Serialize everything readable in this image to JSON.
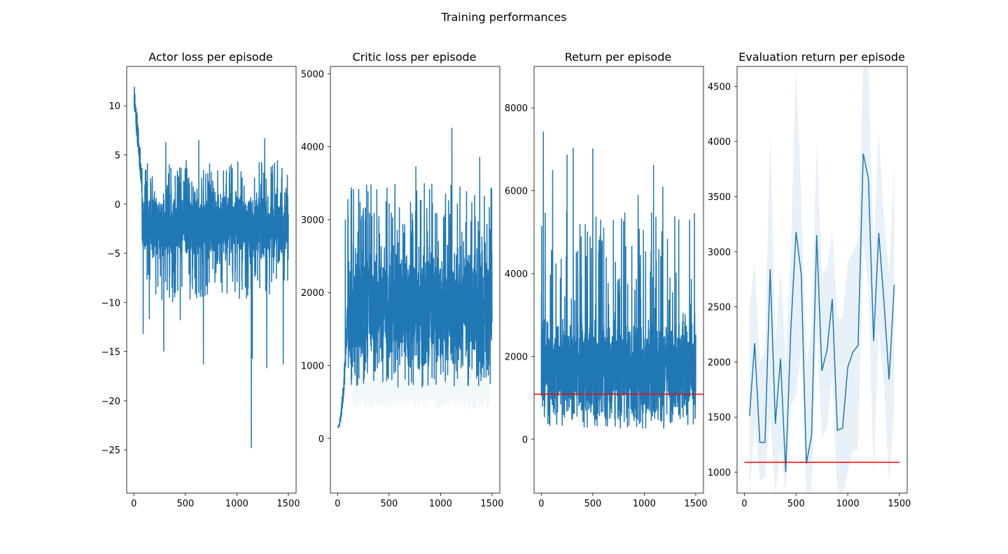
{
  "figure": {
    "title": "Training performances"
  },
  "chart_data": [
    {
      "type": "line",
      "title": "Actor loss per episode",
      "xlabel": "",
      "ylabel": "",
      "xlim": [
        -70,
        1575
      ],
      "ylim": [
        -29.4,
        14.0
      ],
      "xticks": [
        0,
        500,
        1000,
        1500
      ],
      "yticks": [
        10,
        5,
        0,
        -5,
        -10,
        -15,
        -20,
        -25
      ],
      "grid": false,
      "series": [
        {
          "color": "#1f77b4",
          "x_range": [
            0,
            1500
          ],
          "points_per_episode": 1,
          "summary": {
            "start": 11.5,
            "early_decay_to": 2.0,
            "decay_end_episode": 80,
            "typical_band": [
              -5,
              1.5
            ],
            "mean_after_decay": -2.2,
            "min": -24.8,
            "min_at": 1140,
            "max_after_decay": 6.7,
            "max_after_decay_at": 1270
          },
          "notable_spikes": [
            {
              "x": 90,
              "y": -13.2
            },
            {
              "x": 150,
              "y": -11.7
            },
            {
              "x": 290,
              "y": -15.0
            },
            {
              "x": 450,
              "y": -11.8
            },
            {
              "x": 675,
              "y": -16.3
            },
            {
              "x": 1150,
              "y": -15.7
            },
            {
              "x": 1290,
              "y": -16.7
            },
            {
              "x": 1450,
              "y": -16.3
            },
            {
              "x": 310,
              "y": 6.3
            },
            {
              "x": 630,
              "y": 6.5
            },
            {
              "x": 1270,
              "y": 6.7
            }
          ]
        }
      ]
    },
    {
      "type": "line",
      "title": "Critic loss per episode",
      "xlabel": "",
      "ylabel": "",
      "xlim": [
        -70,
        1575
      ],
      "ylim": [
        -750,
        5100
      ],
      "xticks": [
        0,
        500,
        1000,
        1500
      ],
      "yticks": [
        5000,
        4000,
        3000,
        2000,
        1000,
        0
      ],
      "grid": false,
      "series": [
        {
          "color": "#1f77b4",
          "x_range": [
            0,
            1500
          ],
          "summary": {
            "start": 150,
            "ramp_end_episode": 100,
            "typical_band": [
              1100,
              2600
            ],
            "mean_after_ramp": 1800,
            "min_after_ramp": 650,
            "max": 4260,
            "max_at": 1110
          },
          "notable_spikes": [
            {
              "x": 75,
              "y": 3000
            },
            {
              "x": 100,
              "y": 3280
            },
            {
              "x": 480,
              "y": 3440
            },
            {
              "x": 760,
              "y": 3730
            },
            {
              "x": 1110,
              "y": 4260
            },
            {
              "x": 1380,
              "y": 3860
            },
            {
              "x": 1490,
              "y": 3440
            }
          ]
        },
        {
          "name": "",
          "color": "#1f77b4",
          "style": "faint band",
          "opacity": 0.1,
          "band": [
            400,
            1000
          ]
        }
      ]
    },
    {
      "type": "line",
      "title": "Return per episode",
      "xlabel": "",
      "ylabel": "",
      "xlim": [
        -70,
        1575
      ],
      "ylim": [
        -1300,
        9000
      ],
      "xticks": [
        0,
        500,
        1000,
        1500
      ],
      "yticks": [
        8000,
        6000,
        4000,
        2000,
        0
      ],
      "grid": false,
      "series": [
        {
          "color": "#1f77b4",
          "x_range": [
            0,
            1500
          ],
          "summary": {
            "typical_band": [
              800,
              3000
            ],
            "mean": 1700,
            "min": 200,
            "max": 7430,
            "max_at": 20
          },
          "notable_spikes": [
            {
              "x": 20,
              "y": 7430
            },
            {
              "x": 110,
              "y": 6500
            },
            {
              "x": 250,
              "y": 6870
            },
            {
              "x": 310,
              "y": 7040
            },
            {
              "x": 500,
              "y": 7020
            },
            {
              "x": 700,
              "y": 5300
            },
            {
              "x": 940,
              "y": 5900
            },
            {
              "x": 1090,
              "y": 6620
            },
            {
              "x": 1180,
              "y": 6100
            },
            {
              "x": 1440,
              "y": 5300
            }
          ]
        },
        {
          "color": "#ff0000",
          "x": [
            -70,
            1575
          ],
          "y": [
            1090,
            1090
          ]
        }
      ]
    },
    {
      "type": "area",
      "title": "Evaluation return per episode",
      "xlabel": "",
      "ylabel": "",
      "xlim": [
        -70,
        1575
      ],
      "ylim": [
        810,
        4680
      ],
      "xticks": [
        0,
        500,
        1000,
        1500
      ],
      "yticks": [
        4500,
        4000,
        3500,
        3000,
        2500,
        2000,
        1500,
        1000
      ],
      "grid": false,
      "series": [
        {
          "color": "#1f77b4",
          "x": [
            50,
            100,
            150,
            200,
            250,
            300,
            350,
            400,
            450,
            500,
            550,
            600,
            650,
            700,
            750,
            800,
            850,
            900,
            950,
            1000,
            1050,
            1100,
            1150,
            1200,
            1250,
            1300,
            1350,
            1400,
            1450
          ],
          "y": [
            1510,
            2170,
            1270,
            1270,
            2840,
            1440,
            2030,
            1000,
            2300,
            3180,
            2800,
            1080,
            1330,
            3150,
            1920,
            2110,
            2570,
            1380,
            1400,
            1950,
            2090,
            2150,
            3890,
            3660,
            2190,
            3170,
            2550,
            1840,
            2700
          ],
          "upper": [
            2500,
            2900,
            2000,
            2100,
            4120,
            2150,
            2860,
            2000,
            3000,
            4680,
            3500,
            2000,
            2300,
            4000,
            2800,
            2850,
            3200,
            2400,
            2400,
            2900,
            3000,
            3100,
            4680,
            4680,
            3000,
            4100,
            3300,
            2800,
            3820
          ],
          "lower": [
            800,
            1450,
            930,
            950,
            1500,
            800,
            1200,
            800,
            1600,
            1700,
            2100,
            800,
            800,
            2300,
            1300,
            1400,
            1900,
            800,
            800,
            1000,
            1200,
            1200,
            3100,
            2700,
            950,
            2300,
            1800,
            900,
            1600
          ]
        },
        {
          "color": "#ff0000",
          "x": [
            0,
            1500
          ],
          "y": [
            1090,
            1090
          ]
        }
      ]
    }
  ]
}
